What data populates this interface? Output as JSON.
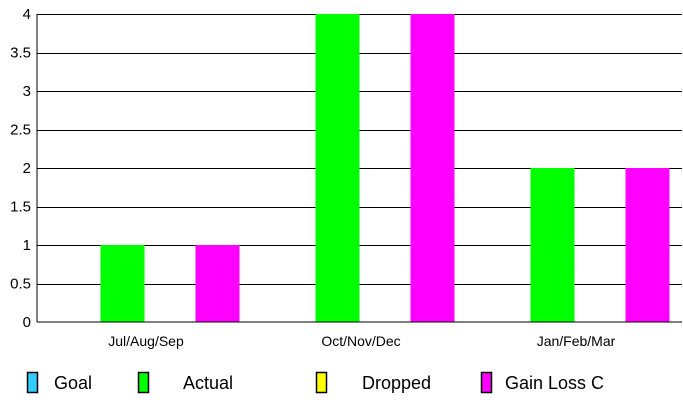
{
  "chart_data": {
    "type": "bar",
    "title": "",
    "xlabel": "",
    "ylabel": "",
    "categories": [
      "Jul/Aug/Sep",
      "Oct/Nov/Dec",
      "Jan/Feb/Mar"
    ],
    "series": [
      {
        "name": "Goal",
        "values": [
          0,
          0,
          0
        ],
        "color": "#33ccff"
      },
      {
        "name": "Actual",
        "values": [
          1,
          4,
          2
        ],
        "color": "#00ff00"
      },
      {
        "name": "Dropped",
        "values": [
          0,
          0,
          0
        ],
        "color": "#ffff00"
      },
      {
        "name": "Gain Loss C",
        "values": [
          1,
          4,
          2
        ],
        "color": "#ff00ff"
      }
    ],
    "ylim": [
      0,
      4
    ],
    "yticks": [
      "0",
      "0.5",
      "1",
      "1.5",
      "2",
      "2.5",
      "3",
      "3.5",
      "4"
    ],
    "grid": true,
    "legend_position": "bottom"
  }
}
